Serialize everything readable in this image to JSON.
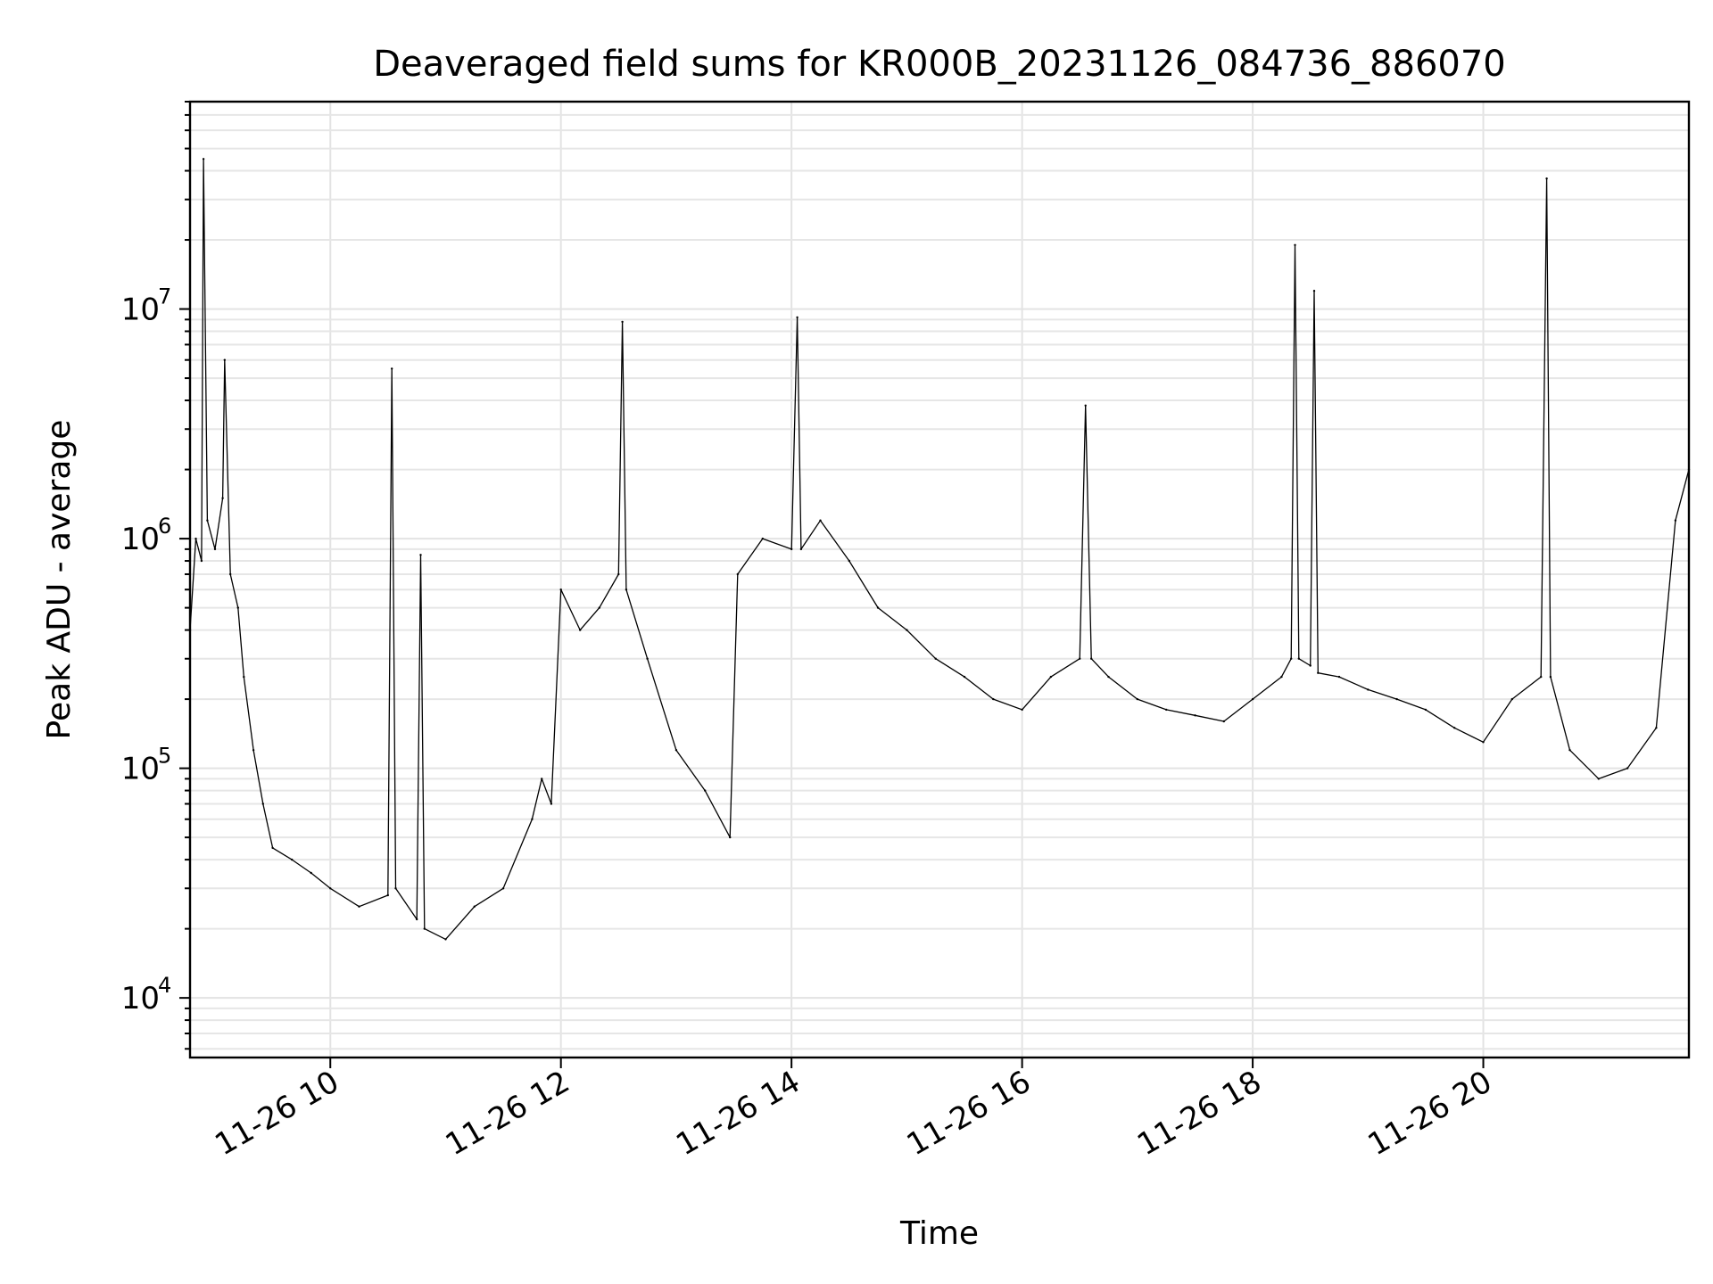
{
  "chart_data": {
    "type": "line",
    "title": "Deaveraged field sums for KR000B_20231126_084736_886070",
    "xlabel": "Time",
    "ylabel": "Peak ADU - average",
    "yscale": "log",
    "grid": true,
    "x_range": [
      "2023-11-26T08:47",
      "2023-11-26T21:47"
    ],
    "ylim": [
      5500,
      80000000
    ],
    "x_ticks": [
      {
        "value": "2023-11-26T10:00",
        "label": "11-26 10"
      },
      {
        "value": "2023-11-26T12:00",
        "label": "11-26 12"
      },
      {
        "value": "2023-11-26T14:00",
        "label": "11-26 14"
      },
      {
        "value": "2023-11-26T16:00",
        "label": "11-26 16"
      },
      {
        "value": "2023-11-26T18:00",
        "label": "11-26 18"
      },
      {
        "value": "2023-11-26T20:00",
        "label": "11-26 20"
      }
    ],
    "y_ticks": [
      {
        "value": 10000,
        "base": "10",
        "exp": "4"
      },
      {
        "value": 100000,
        "base": "10",
        "exp": "5"
      },
      {
        "value": 1000000,
        "base": "10",
        "exp": "6"
      },
      {
        "value": 10000000,
        "base": "10",
        "exp": "7"
      }
    ],
    "line_color": "#000000",
    "series": [
      {
        "x": [
          "2023-11-26T08:47",
          "2023-11-26T08:50",
          "2023-11-26T08:53",
          "2023-11-26T08:54",
          "2023-11-26T08:56",
          "2023-11-26T09:00",
          "2023-11-26T09:04",
          "2023-11-26T09:05",
          "2023-11-26T09:08",
          "2023-11-26T09:12",
          "2023-11-26T09:15",
          "2023-11-26T09:20",
          "2023-11-26T09:25",
          "2023-11-26T09:30",
          "2023-11-26T09:40",
          "2023-11-26T09:50",
          "2023-11-26T10:00",
          "2023-11-26T10:15",
          "2023-11-26T10:30",
          "2023-11-26T10:32",
          "2023-11-26T10:34",
          "2023-11-26T10:45",
          "2023-11-26T10:47",
          "2023-11-26T10:49",
          "2023-11-26T11:00",
          "2023-11-26T11:15",
          "2023-11-26T11:30",
          "2023-11-26T11:45",
          "2023-11-26T11:50",
          "2023-11-26T11:55",
          "2023-11-26T12:00",
          "2023-11-26T12:10",
          "2023-11-26T12:20",
          "2023-11-26T12:30",
          "2023-11-26T12:32",
          "2023-11-26T12:34",
          "2023-11-26T12:45",
          "2023-11-26T13:00",
          "2023-11-26T13:15",
          "2023-11-26T13:28",
          "2023-11-26T13:32",
          "2023-11-26T13:45",
          "2023-11-26T14:00",
          "2023-11-26T14:03",
          "2023-11-26T14:05",
          "2023-11-26T14:15",
          "2023-11-26T14:30",
          "2023-11-26T14:45",
          "2023-11-26T15:00",
          "2023-11-26T15:15",
          "2023-11-26T15:30",
          "2023-11-26T15:45",
          "2023-11-26T16:00",
          "2023-11-26T16:15",
          "2023-11-26T16:30",
          "2023-11-26T16:33",
          "2023-11-26T16:36",
          "2023-11-26T16:45",
          "2023-11-26T17:00",
          "2023-11-26T17:15",
          "2023-11-26T17:30",
          "2023-11-26T17:45",
          "2023-11-26T18:00",
          "2023-11-26T18:15",
          "2023-11-26T18:20",
          "2023-11-26T18:22",
          "2023-11-26T18:24",
          "2023-11-26T18:30",
          "2023-11-26T18:32",
          "2023-11-26T18:34",
          "2023-11-26T18:45",
          "2023-11-26T19:00",
          "2023-11-26T19:15",
          "2023-11-26T19:30",
          "2023-11-26T19:45",
          "2023-11-26T20:00",
          "2023-11-26T20:15",
          "2023-11-26T20:30",
          "2023-11-26T20:33",
          "2023-11-26T20:35",
          "2023-11-26T20:45",
          "2023-11-26T21:00",
          "2023-11-26T21:15",
          "2023-11-26T21:30",
          "2023-11-26T21:40",
          "2023-11-26T21:47"
        ],
        "y": [
          400000,
          1000000,
          800000,
          45000000,
          1200000,
          900000,
          1500000,
          6000000,
          700000,
          500000,
          250000,
          120000,
          70000,
          45000,
          40000,
          35000,
          30000,
          25000,
          28000,
          5500000,
          30000,
          22000,
          850000,
          20000,
          18000,
          25000,
          30000,
          60000,
          90000,
          70000,
          600000,
          400000,
          500000,
          700000,
          8800000,
          600000,
          300000,
          120000,
          80000,
          50000,
          700000,
          1000000,
          900000,
          9200000,
          900000,
          1200000,
          800000,
          500000,
          400000,
          300000,
          250000,
          200000,
          180000,
          250000,
          300000,
          3800000,
          300000,
          250000,
          200000,
          180000,
          170000,
          160000,
          200000,
          250000,
          300000,
          19000000,
          300000,
          280000,
          12000000,
          260000,
          250000,
          220000,
          200000,
          180000,
          150000,
          130000,
          200000,
          250000,
          37000000,
          250000,
          120000,
          90000,
          100000,
          150000,
          1200000,
          2000000
        ]
      }
    ]
  }
}
